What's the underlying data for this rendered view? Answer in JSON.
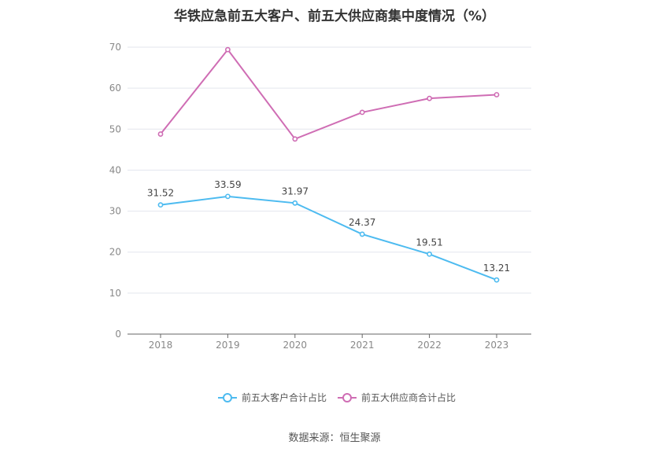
{
  "chart_data": {
    "type": "line",
    "title": "华铁应急前五大客户、前五大供应商集中度情况（%）",
    "x": [
      "2018",
      "2019",
      "2020",
      "2021",
      "2022",
      "2023"
    ],
    "ylim": [
      0,
      70
    ],
    "yticks": [
      0,
      10,
      20,
      30,
      40,
      50,
      60,
      70
    ],
    "grid": true,
    "legend_position": "bottom",
    "series": [
      {
        "name": "前五大客户合计占比",
        "color": "#4dbbf0",
        "values": [
          31.52,
          33.59,
          31.97,
          24.37,
          19.51,
          13.21
        ],
        "show_labels": true
      },
      {
        "name": "前五大供应商合计占比",
        "color": "#cf6db4",
        "values": [
          48.8,
          69.4,
          47.6,
          54.1,
          57.5,
          58.4
        ],
        "show_labels": false
      }
    ]
  },
  "source": "数据来源：恒生聚源"
}
